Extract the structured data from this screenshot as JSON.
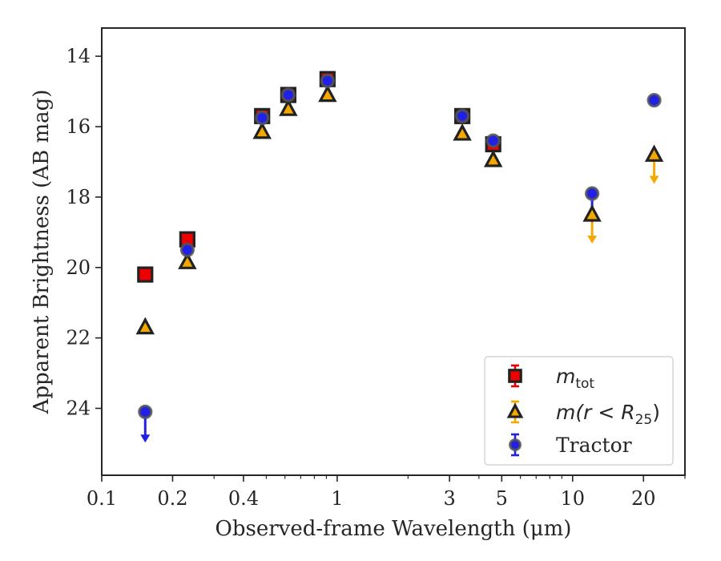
{
  "chart_data": {
    "type": "scatter",
    "xlabel": "Observed-frame Wavelength (μm)",
    "ylabel": "Apparent Brightness (AB mag)",
    "x_scale": "log",
    "xlim": [
      0.1,
      30
    ],
    "ylim": [
      25.9,
      13.2
    ],
    "y_inverted": true,
    "x_ticks": [
      {
        "value": 0.1,
        "label": "0.1"
      },
      {
        "value": 0.2,
        "label": "0.2"
      },
      {
        "value": 0.4,
        "label": "0.4"
      },
      {
        "value": 1,
        "label": "1"
      },
      {
        "value": 3,
        "label": "3"
      },
      {
        "value": 5,
        "label": "5"
      },
      {
        "value": 10,
        "label": "10"
      },
      {
        "value": 20,
        "label": "20"
      }
    ],
    "y_ticks": [
      {
        "value": 14,
        "label": "14"
      },
      {
        "value": 16,
        "label": "16"
      },
      {
        "value": 18,
        "label": "18"
      },
      {
        "value": 20,
        "label": "20"
      },
      {
        "value": 22,
        "label": "22"
      },
      {
        "value": 24,
        "label": "24"
      }
    ],
    "grid": false,
    "legend": {
      "position": "lower-right",
      "entries": [
        {
          "label": "m",
          "subscript": "tot",
          "marker": "square",
          "series": "mtot"
        },
        {
          "label": "m(r < R",
          "subscript": "25",
          "suffix": ")",
          "marker": "triangle",
          "series": "mr25"
        },
        {
          "label": "Tractor",
          "marker": "circle",
          "series": "tractor"
        }
      ]
    },
    "series": [
      {
        "key": "mtot",
        "marker": "square",
        "color": "#ee0000",
        "edge_color": "#222222",
        "points": [
          {
            "x": 0.153,
            "y": 20.2
          },
          {
            "x": 0.231,
            "y": 19.2
          },
          {
            "x": 0.48,
            "y": 15.7
          },
          {
            "x": 0.62,
            "y": 15.1
          },
          {
            "x": 0.91,
            "y": 14.65
          },
          {
            "x": 3.4,
            "y": 15.7
          },
          {
            "x": 4.6,
            "y": 16.5
          }
        ]
      },
      {
        "key": "mr25",
        "marker": "triangle",
        "color": "#f5a800",
        "edge_color": "#222222",
        "points": [
          {
            "x": 0.153,
            "y": 21.7
          },
          {
            "x": 0.231,
            "y": 19.85
          },
          {
            "x": 0.48,
            "y": 16.15
          },
          {
            "x": 0.62,
            "y": 15.5
          },
          {
            "x": 0.91,
            "y": 15.1
          },
          {
            "x": 3.4,
            "y": 16.2
          },
          {
            "x": 4.6,
            "y": 16.95
          },
          {
            "x": 12.1,
            "y": 18.5,
            "upper_limit": true,
            "arrow_to": 19.3
          },
          {
            "x": 22.2,
            "y": 16.8,
            "upper_limit": true,
            "arrow_to": 17.6
          }
        ]
      },
      {
        "key": "tractor",
        "marker": "circle",
        "color": "#2020e6",
        "edge_color": "#555555",
        "points": [
          {
            "x": 0.153,
            "y": 24.1,
            "upper_limit": true,
            "arrow_to": 24.95
          },
          {
            "x": 0.231,
            "y": 19.5
          },
          {
            "x": 0.48,
            "y": 15.75
          },
          {
            "x": 0.62,
            "y": 15.1
          },
          {
            "x": 0.91,
            "y": 14.7
          },
          {
            "x": 3.4,
            "y": 15.7
          },
          {
            "x": 4.6,
            "y": 16.4
          },
          {
            "x": 12.1,
            "y": 17.9,
            "upper_limit": true,
            "arrow_to": 18.7
          },
          {
            "x": 22.2,
            "y": 15.25
          }
        ]
      }
    ]
  }
}
